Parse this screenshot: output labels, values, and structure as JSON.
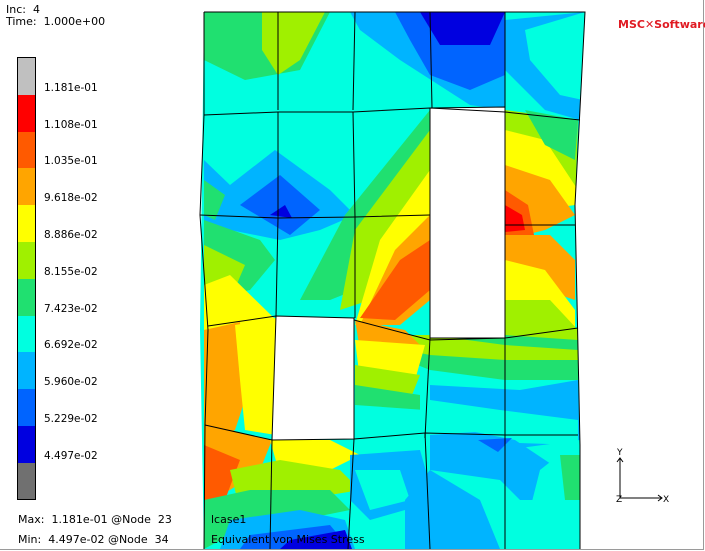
{
  "header": {
    "inc": "Inc:  4",
    "time": "Time:  1.000e+00"
  },
  "legend": {
    "entries": [
      {
        "label": "1.181e-01",
        "color": "#c0c0c0"
      },
      {
        "label": "1.108e-01",
        "color": "#ff0000"
      },
      {
        "label": "1.035e-01",
        "color": "#ff5a00"
      },
      {
        "label": "9.618e-02",
        "color": "#ffa500"
      },
      {
        "label": "8.886e-02",
        "color": "#ffff00"
      },
      {
        "label": "8.155e-02",
        "color": "#a0f000"
      },
      {
        "label": "7.423e-02",
        "color": "#20e070"
      },
      {
        "label": "6.692e-02",
        "color": "#00ffe0"
      },
      {
        "label": "5.960e-02",
        "color": "#00b4ff"
      },
      {
        "label": "5.229e-02",
        "color": "#0064ff"
      },
      {
        "label": "4.497e-02",
        "color": "#0000e0"
      },
      {
        "label": "",
        "color": "#707070"
      }
    ]
  },
  "footer": {
    "max": "Max:  1.181e-01 @Node  23",
    "min": "Min:  4.497e-02 @Node  34",
    "lcase": "lcase1",
    "result": "Equivalent von Mises Stress"
  },
  "logo": {
    "brand_a": "MSC",
    "brand_b": "Software"
  },
  "axes": {
    "y": "Y",
    "z": "Z",
    "x": "X"
  },
  "colors": {
    "red": "#ff0000",
    "orange": "#ff5a00",
    "gold": "#ffa500",
    "yellow": "#ffff00",
    "lime": "#a0f000",
    "green": "#20e070",
    "cyan": "#00ffe0",
    "lightblue": "#00b4ff",
    "blue": "#0064ff",
    "darkblue": "#0000e0"
  }
}
